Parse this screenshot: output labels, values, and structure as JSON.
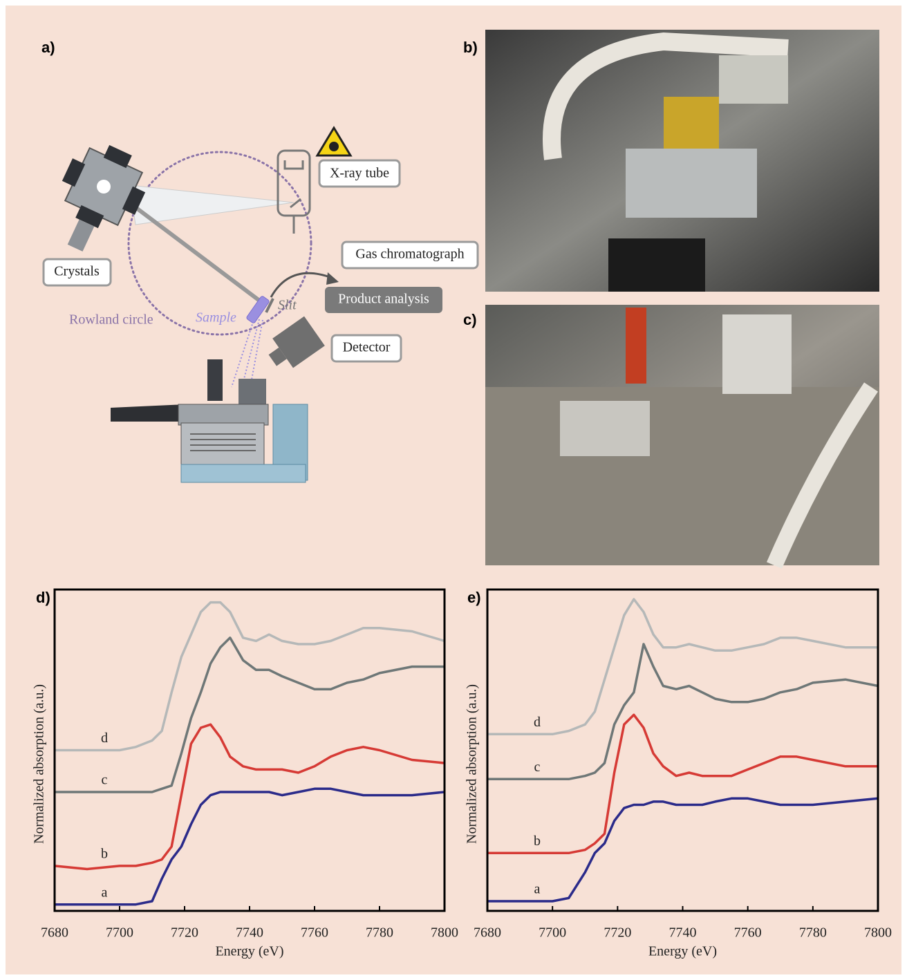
{
  "panels": {
    "a": "a)",
    "b": "b)",
    "c": "c)"
  },
  "diagram": {
    "xray_tube": "X-ray tube",
    "crystals": "Crystals",
    "gas_chromatograph": "Gas chromatograph",
    "product_analysis": "Product analysis",
    "rowland_circle": "Rowland circle",
    "sample": "Sample",
    "slit": "Slit",
    "detector": "Detector"
  },
  "chart_data": [
    {
      "type": "line",
      "panel_label": "d)",
      "x_label": "Energy (eV)",
      "y_label": "Normalized absorption (a.u.)",
      "x": [
        7680,
        7690,
        7700,
        7705,
        7710,
        7713,
        7716,
        7719,
        7722,
        7725,
        7728,
        7731,
        7734,
        7738,
        7742,
        7746,
        7750,
        7755,
        7760,
        7765,
        7770,
        7775,
        7780,
        7790,
        7800
      ],
      "xlim": [
        7680,
        7800
      ],
      "xticks": [
        7680,
        7700,
        7720,
        7740,
        7760,
        7780,
        7800
      ],
      "ylim": [
        0,
        1
      ],
      "grid": false,
      "series": [
        {
          "name": "a",
          "color": "#2b2b8a",
          "values": [
            0.02,
            0.02,
            0.02,
            0.02,
            0.03,
            0.1,
            0.16,
            0.2,
            0.27,
            0.33,
            0.36,
            0.37,
            0.37,
            0.37,
            0.37,
            0.37,
            0.36,
            0.37,
            0.38,
            0.38,
            0.37,
            0.36,
            0.36,
            0.36,
            0.37
          ]
        },
        {
          "name": "b",
          "color": "#d63a35",
          "values": [
            0.14,
            0.13,
            0.14,
            0.14,
            0.15,
            0.16,
            0.2,
            0.36,
            0.52,
            0.57,
            0.58,
            0.54,
            0.48,
            0.45,
            0.44,
            0.44,
            0.44,
            0.43,
            0.45,
            0.48,
            0.5,
            0.51,
            0.5,
            0.47,
            0.46
          ]
        },
        {
          "name": "c",
          "color": "#6e7777",
          "values": [
            0.37,
            0.37,
            0.37,
            0.37,
            0.37,
            0.38,
            0.39,
            0.49,
            0.6,
            0.68,
            0.77,
            0.82,
            0.85,
            0.78,
            0.75,
            0.75,
            0.73,
            0.71,
            0.69,
            0.69,
            0.71,
            0.72,
            0.74,
            0.76,
            0.76
          ]
        },
        {
          "name": "d",
          "color": "#b5b8b8",
          "values": [
            0.5,
            0.5,
            0.5,
            0.51,
            0.53,
            0.56,
            0.68,
            0.79,
            0.86,
            0.93,
            0.96,
            0.96,
            0.93,
            0.85,
            0.84,
            0.86,
            0.84,
            0.83,
            0.83,
            0.84,
            0.86,
            0.88,
            0.88,
            0.87,
            0.84
          ]
        }
      ]
    },
    {
      "type": "line",
      "panel_label": "e)",
      "x_label": "Energy (eV)",
      "y_label": "Normalized absorption (a.u.)",
      "x": [
        7680,
        7690,
        7700,
        7705,
        7710,
        7713,
        7716,
        7719,
        7722,
        7725,
        7728,
        7731,
        7734,
        7738,
        7742,
        7746,
        7750,
        7755,
        7760,
        7765,
        7770,
        7775,
        7780,
        7790,
        7800
      ],
      "xlim": [
        7680,
        7800
      ],
      "xticks": [
        7680,
        7700,
        7720,
        7740,
        7760,
        7780,
        7800
      ],
      "ylim": [
        0,
        1
      ],
      "grid": false,
      "series": [
        {
          "name": "a",
          "color": "#2b2b8a",
          "values": [
            0.03,
            0.03,
            0.03,
            0.04,
            0.12,
            0.18,
            0.21,
            0.28,
            0.32,
            0.33,
            0.33,
            0.34,
            0.34,
            0.33,
            0.33,
            0.33,
            0.34,
            0.35,
            0.35,
            0.34,
            0.33,
            0.33,
            0.33,
            0.34,
            0.35
          ]
        },
        {
          "name": "b",
          "color": "#d63a35",
          "values": [
            0.18,
            0.18,
            0.18,
            0.18,
            0.19,
            0.21,
            0.24,
            0.43,
            0.58,
            0.61,
            0.57,
            0.49,
            0.45,
            0.42,
            0.43,
            0.42,
            0.42,
            0.42,
            0.44,
            0.46,
            0.48,
            0.48,
            0.47,
            0.45,
            0.45
          ]
        },
        {
          "name": "c",
          "color": "#6e7777",
          "values": [
            0.41,
            0.41,
            0.41,
            0.41,
            0.42,
            0.43,
            0.46,
            0.58,
            0.64,
            0.68,
            0.83,
            0.76,
            0.7,
            0.69,
            0.7,
            0.68,
            0.66,
            0.65,
            0.65,
            0.66,
            0.68,
            0.69,
            0.71,
            0.72,
            0.7
          ]
        },
        {
          "name": "d",
          "color": "#b5b8b8",
          "values": [
            0.55,
            0.55,
            0.55,
            0.56,
            0.58,
            0.62,
            0.72,
            0.82,
            0.92,
            0.97,
            0.93,
            0.86,
            0.82,
            0.82,
            0.83,
            0.82,
            0.81,
            0.81,
            0.82,
            0.83,
            0.85,
            0.85,
            0.84,
            0.82,
            0.82
          ]
        }
      ]
    }
  ]
}
